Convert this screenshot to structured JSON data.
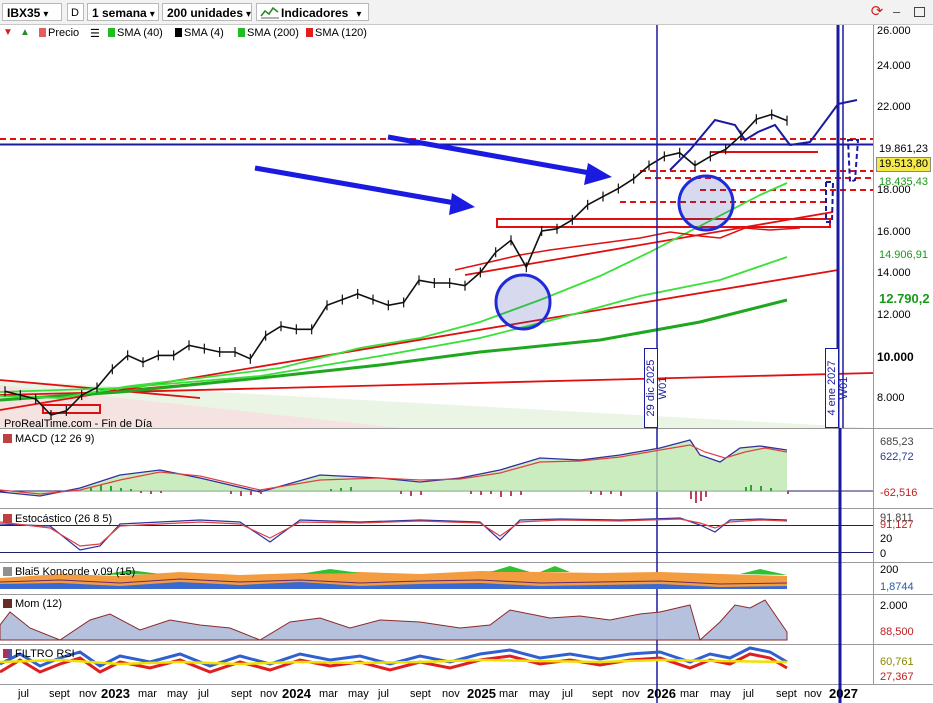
{
  "toolbar": {
    "symbol": "IBX35",
    "period_badge": "D",
    "timeframe": "1 semana",
    "units": "200 unidades",
    "indicators": "Indicadores"
  },
  "legend": {
    "items": [
      {
        "label": "Precio",
        "color": "#1a1a1a"
      },
      {
        "label": "SMA (40)",
        "color": "#22bb22"
      },
      {
        "label": "SMA (4)",
        "color": "#000000"
      },
      {
        "label": "SMA (200)",
        "color": "#22bb22"
      },
      {
        "label": "SMA (120)",
        "color": "#e02020"
      }
    ]
  },
  "watermark": "ProRealTime.com - Fin de Día",
  "vlines": {
    "left": "29 dic 2025 W01",
    "right": "4 ene 2027 W01"
  },
  "price_axis": {
    "ticks": [
      "26.000",
      "24.000",
      "22.000",
      "18.000",
      "16.000",
      "14.000",
      "12.000",
      "10.000",
      "8.000"
    ],
    "boxes": [
      {
        "text": "19.861,23",
        "bg": "#ffffff",
        "fg": "#000000"
      },
      {
        "text": "19.513,80",
        "bg": "#f5e94a",
        "fg": "#000000"
      },
      {
        "text": "18.435,43",
        "bg": "#ffffff",
        "fg": "#1a9a1a"
      },
      {
        "text": "14.906,91",
        "bg": "#ffffff",
        "fg": "#1a9a1a"
      },
      {
        "text": "12.790,2",
        "bg": "#ffffff",
        "fg": "#1a9a1a"
      }
    ]
  },
  "panels": [
    {
      "title": "MACD (12 26 9)",
      "labels": [
        {
          "text": "685,23",
          "fg": "#444444"
        },
        {
          "text": "622,72",
          "fg": "#2a3a99"
        },
        {
          "text": "-62,516",
          "fg": "#c02020"
        }
      ]
    },
    {
      "title": "Estocástico (26 8 5)",
      "labels": [
        {
          "text": "91,811",
          "fg": "#444444"
        },
        {
          "text": "91,127",
          "fg": "#c02020"
        },
        {
          "text": "20",
          "fg": "#000000"
        },
        {
          "text": "0",
          "fg": "#000000"
        }
      ]
    },
    {
      "title": "Blai5 Koncorde v.09 (15)",
      "labels": [
        {
          "text": "200",
          "fg": "#000000"
        },
        {
          "text": "1,8744",
          "fg": "#2a5aaa"
        }
      ]
    },
    {
      "title": "Mom (12)",
      "labels": [
        {
          "text": "2.000",
          "fg": "#000000"
        },
        {
          "text": "88,500",
          "fg": "#c02020"
        }
      ]
    },
    {
      "title": "FILTRO RSI",
      "labels": [
        {
          "text": "60,761",
          "fg": "#888800"
        },
        {
          "text": "27,367",
          "fg": "#c02020"
        }
      ]
    }
  ],
  "x_axis": [
    {
      "text": "jul",
      "bold": false
    },
    {
      "text": "sept",
      "bold": false
    },
    {
      "text": "nov",
      "bold": false
    },
    {
      "text": "2023",
      "bold": true
    },
    {
      "text": "mar",
      "bold": false
    },
    {
      "text": "may",
      "bold": false
    },
    {
      "text": "jul",
      "bold": false
    },
    {
      "text": "sept",
      "bold": false
    },
    {
      "text": "nov",
      "bold": false
    },
    {
      "text": "2024",
      "bold": true
    },
    {
      "text": "mar",
      "bold": false
    },
    {
      "text": "may",
      "bold": false
    },
    {
      "text": "jul",
      "bold": false
    },
    {
      "text": "sept",
      "bold": false
    },
    {
      "text": "nov",
      "bold": false
    },
    {
      "text": "2025",
      "bold": true
    },
    {
      "text": "mar",
      "bold": false
    },
    {
      "text": "may",
      "bold": false
    },
    {
      "text": "jul",
      "bold": false
    },
    {
      "text": "sept",
      "bold": false
    },
    {
      "text": "nov",
      "bold": false
    },
    {
      "text": "2026",
      "bold": true
    },
    {
      "text": "mar",
      "bold": false
    },
    {
      "text": "may",
      "bold": false
    },
    {
      "text": "jul",
      "bold": false
    },
    {
      "text": "sept",
      "bold": false
    },
    {
      "text": "nov",
      "bold": false
    },
    {
      "text": "2027",
      "bold": true
    }
  ],
  "chart_data": {
    "type": "line",
    "scale": "log",
    "ylim": [
      7000,
      26000
    ],
    "x": [
      "2022-06",
      "2022-07",
      "2022-08",
      "2022-09",
      "2022-10",
      "2022-11",
      "2022-12",
      "2023-01",
      "2023-02",
      "2023-03",
      "2023-04",
      "2023-05",
      "2023-06",
      "2023-07",
      "2023-08",
      "2023-09",
      "2023-10",
      "2023-11",
      "2023-12",
      "2024-01",
      "2024-02",
      "2024-03",
      "2024-04",
      "2024-05",
      "2024-06",
      "2024-07",
      "2024-08",
      "2024-09",
      "2024-10",
      "2024-11",
      "2024-12",
      "2025-01",
      "2025-02",
      "2025-03",
      "2025-04",
      "2025-05",
      "2025-06",
      "2025-07",
      "2025-08",
      "2025-09",
      "2025-10",
      "2025-11",
      "2025-12",
      "2026-01",
      "2026-02",
      "2026-03",
      "2026-04",
      "2026-05",
      "2026-06",
      "2026-07",
      "2026-08",
      "2026-09"
    ],
    "series": [
      {
        "name": "Precio",
        "color": "#1a1a1a",
        "values": [
          8200,
          8100,
          8000,
          7600,
          7700,
          8100,
          8300,
          8800,
          9200,
          9000,
          9200,
          9200,
          9500,
          9400,
          9300,
          9300,
          9100,
          9800,
          10100,
          10000,
          10000,
          10800,
          11000,
          11200,
          11000,
          10800,
          10900,
          11700,
          11600,
          11600,
          11500,
          12000,
          12800,
          13300,
          12200,
          13700,
          13800,
          14200,
          14900,
          15300,
          15700,
          16200,
          16900,
          17400,
          17600,
          16900,
          17400,
          17800,
          18600,
          19600,
          19900,
          19514
        ]
      }
    ],
    "vlines": [
      "2025-12-29",
      "2027-01-04"
    ],
    "levels": [
      19861.23,
      19513.8,
      18435.43,
      14906.91,
      12790.2
    ]
  }
}
